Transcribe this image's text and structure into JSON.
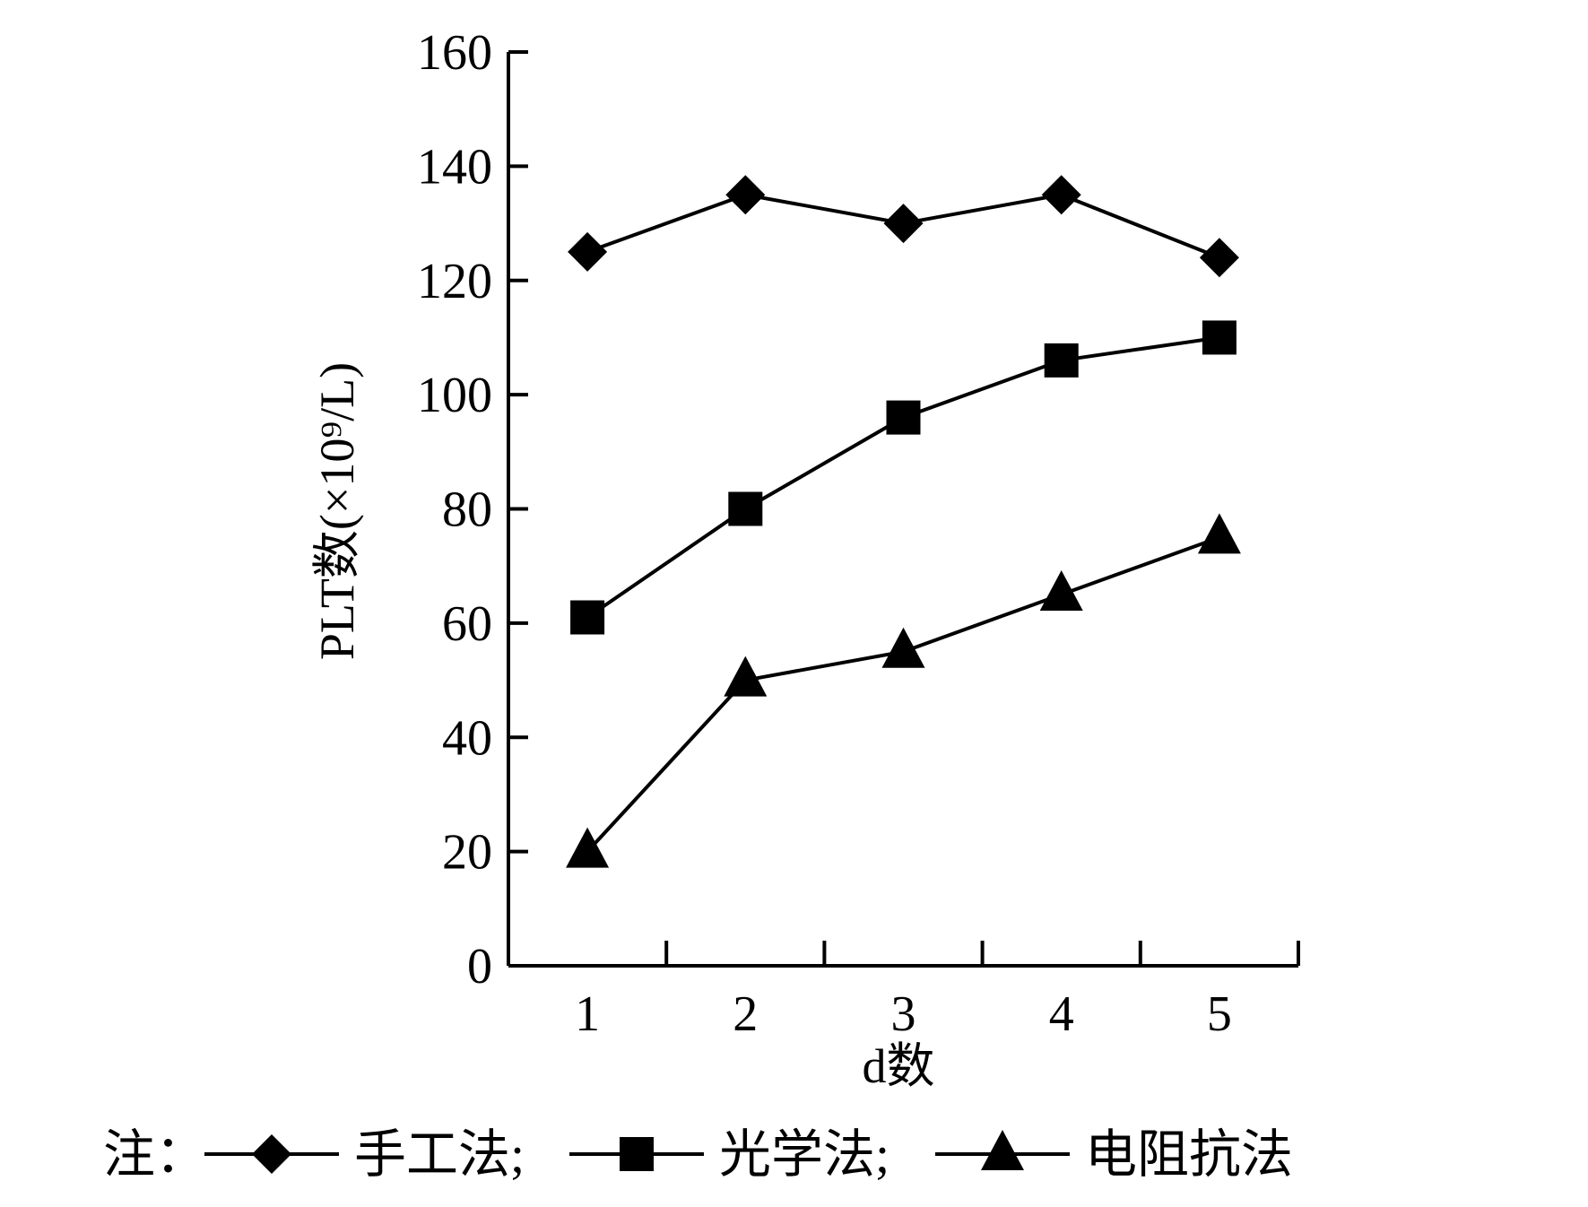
{
  "chart_data": {
    "type": "line",
    "title": "",
    "xlabel": "d数",
    "ylabel": "PLT数(×10⁹/L)",
    "categories": [
      "1",
      "2",
      "3",
      "4",
      "5"
    ],
    "x": [
      1,
      2,
      3,
      4,
      5
    ],
    "xlim": [
      0.5,
      5.5
    ],
    "ylim": [
      0,
      160
    ],
    "y_ticks": [
      0,
      20,
      40,
      60,
      80,
      100,
      120,
      140,
      160
    ],
    "grid": false,
    "series": [
      {
        "name": "手工法",
        "marker": "diamond",
        "values": [
          125,
          135,
          130,
          135,
          124
        ]
      },
      {
        "name": "光学法",
        "marker": "square",
        "values": [
          61,
          80,
          96,
          106,
          110
        ]
      },
      {
        "name": "电阻抗法",
        "marker": "triangle",
        "values": [
          20,
          50,
          55,
          65,
          75
        ]
      }
    ],
    "legend": {
      "position": "bottom",
      "prefix": "注：",
      "separator": ";"
    },
    "colors": {
      "line": "#000000",
      "marker": "#000000"
    }
  }
}
